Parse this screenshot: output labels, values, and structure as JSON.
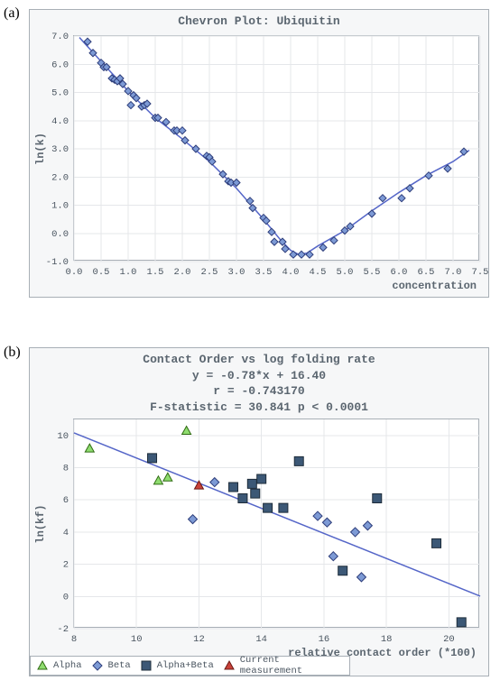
{
  "panel_labels": {
    "a": "(a)",
    "b": "(b)"
  },
  "chart_a": {
    "type": "scatter+line",
    "title": "Chevron Plot: Ubiquitin",
    "title_fontsize": 13,
    "title_color": "#5b6670",
    "xlabel": "concentration",
    "ylabel": "ln(k)",
    "label_fontsize": 12,
    "xlim": [
      0.0,
      7.5
    ],
    "ylim": [
      -1.0,
      7.0
    ],
    "xtick_step": 0.5,
    "ytick_step": 1.0,
    "background_color": "#f6f7f8",
    "plot_background": "#ffffff",
    "grid_color": "#e5e7ea",
    "frame_color": "#a8afb6",
    "line_color": "#5566c8",
    "line_width": 1.5,
    "marker": {
      "shape": "diamond",
      "size": 8,
      "fill": "#7d9ad5",
      "stroke": "#2d3d7a",
      "stroke_width": 1
    },
    "data": [
      [
        0.25,
        6.8
      ],
      [
        0.35,
        6.4
      ],
      [
        0.5,
        6.05
      ],
      [
        0.55,
        5.9
      ],
      [
        0.6,
        5.9
      ],
      [
        0.7,
        5.5
      ],
      [
        0.75,
        5.45
      ],
      [
        0.8,
        5.4
      ],
      [
        0.85,
        5.5
      ],
      [
        0.9,
        5.3
      ],
      [
        1.0,
        5.05
      ],
      [
        1.05,
        4.55
      ],
      [
        1.1,
        4.9
      ],
      [
        1.15,
        4.8
      ],
      [
        1.25,
        4.5
      ],
      [
        1.3,
        4.55
      ],
      [
        1.35,
        4.6
      ],
      [
        1.5,
        4.1
      ],
      [
        1.55,
        4.1
      ],
      [
        1.7,
        3.95
      ],
      [
        1.85,
        3.65
      ],
      [
        1.9,
        3.65
      ],
      [
        2.0,
        3.65
      ],
      [
        2.05,
        3.3
      ],
      [
        2.25,
        3.0
      ],
      [
        2.45,
        2.75
      ],
      [
        2.5,
        2.7
      ],
      [
        2.55,
        2.55
      ],
      [
        2.75,
        2.1
      ],
      [
        2.85,
        1.85
      ],
      [
        2.9,
        1.8
      ],
      [
        3.0,
        1.8
      ],
      [
        3.25,
        1.15
      ],
      [
        3.3,
        0.9
      ],
      [
        3.5,
        0.55
      ],
      [
        3.55,
        0.45
      ],
      [
        3.65,
        0.05
      ],
      [
        3.7,
        -0.3
      ],
      [
        3.85,
        -0.3
      ],
      [
        3.9,
        -0.55
      ],
      [
        4.05,
        -0.75
      ],
      [
        4.2,
        -0.75
      ],
      [
        4.35,
        -0.75
      ],
      [
        4.6,
        -0.5
      ],
      [
        4.8,
        -0.25
      ],
      [
        5.0,
        0.1
      ],
      [
        5.1,
        0.25
      ],
      [
        5.5,
        0.7
      ],
      [
        5.7,
        1.25
      ],
      [
        6.05,
        1.25
      ],
      [
        6.2,
        1.6
      ],
      [
        6.55,
        2.05
      ],
      [
        6.9,
        2.3
      ],
      [
        7.2,
        2.9
      ]
    ],
    "fit_curve": [
      [
        0.1,
        6.95
      ],
      [
        0.5,
        6.1
      ],
      [
        1.0,
        5.05
      ],
      [
        1.5,
        4.1
      ],
      [
        2.0,
        3.35
      ],
      [
        2.5,
        2.55
      ],
      [
        3.0,
        1.6
      ],
      [
        3.5,
        0.5
      ],
      [
        3.8,
        -0.2
      ],
      [
        4.0,
        -0.6
      ],
      [
        4.15,
        -0.75
      ],
      [
        4.3,
        -0.7
      ],
      [
        4.5,
        -0.45
      ],
      [
        5.0,
        0.1
      ],
      [
        5.5,
        0.8
      ],
      [
        6.0,
        1.45
      ],
      [
        6.5,
        2.05
      ],
      [
        7.0,
        2.55
      ],
      [
        7.3,
        2.95
      ]
    ]
  },
  "chart_b": {
    "type": "scatter+line",
    "title_lines": [
      "Contact Order vs log folding rate",
      "y = -0.78*x + 16.40",
      "r = -0.743170",
      "F-statistic = 30.841 p < 0.0001"
    ],
    "title_fontsize": 13,
    "title_color": "#5b6670",
    "xlabel": "relative contact order (*100)",
    "ylabel": "ln(kf)",
    "label_fontsize": 12,
    "xlim": [
      8,
      21
    ],
    "ylim": [
      -2,
      11
    ],
    "xtick_step": 2,
    "ytick_step": 2,
    "background_color": "#f6f7f8",
    "plot_background": "#ffffff",
    "grid_color": "#e5e7ea",
    "frame_color": "#a8afb6",
    "line_color": "#5566c8",
    "line_width": 1.5,
    "fit_line": {
      "slope": -0.78,
      "intercept": 16.4
    },
    "marker_size": 10,
    "series": {
      "Alpha": {
        "shape": "triangle",
        "fill": "#8fdc6f",
        "stroke": "#2f6b12",
        "points": [
          [
            8.5,
            9.2
          ],
          [
            10.7,
            7.2
          ],
          [
            11.0,
            7.4
          ],
          [
            11.6,
            10.3
          ]
        ]
      },
      "Beta": {
        "shape": "diamond",
        "fill": "#7d9ad5",
        "stroke": "#2d3d7a",
        "points": [
          [
            11.8,
            4.8
          ],
          [
            12.5,
            7.1
          ],
          [
            15.8,
            5.0
          ],
          [
            16.1,
            4.6
          ],
          [
            16.3,
            2.5
          ],
          [
            17.2,
            1.2
          ],
          [
            17.4,
            4.4
          ],
          [
            17.0,
            4.0
          ]
        ]
      },
      "Alpha+Beta": {
        "shape": "square",
        "fill": "#3c5876",
        "stroke": "#1e2c3a",
        "points": [
          [
            10.5,
            8.6
          ],
          [
            13.1,
            6.8
          ],
          [
            13.4,
            6.1
          ],
          [
            13.7,
            7.0
          ],
          [
            13.8,
            6.4
          ],
          [
            14.0,
            7.3
          ],
          [
            14.2,
            5.5
          ],
          [
            14.7,
            5.5
          ],
          [
            15.2,
            8.4
          ],
          [
            16.6,
            1.6
          ],
          [
            17.7,
            6.1
          ],
          [
            19.6,
            3.3
          ],
          [
            20.4,
            -1.6
          ]
        ]
      },
      "Current measurement": {
        "shape": "triangle",
        "fill": "#c9423a",
        "stroke": "#6b1813",
        "points": [
          [
            12.0,
            6.9
          ]
        ]
      }
    },
    "legend": [
      "Alpha",
      "Beta",
      "Alpha+Beta",
      "Current measurement"
    ]
  }
}
